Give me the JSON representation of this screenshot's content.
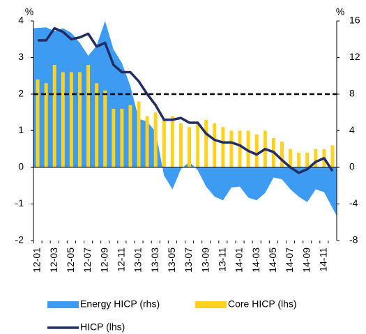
{
  "chart_data": {
    "type": "combo",
    "categories": [
      "12-01",
      null,
      "12-03",
      null,
      "12-05",
      null,
      "12-07",
      null,
      "12-09",
      null,
      "12-11",
      null,
      "13-01",
      null,
      "13-03",
      null,
      "13-05",
      null,
      "13-07",
      null,
      "13-09",
      null,
      "13-11",
      null,
      "14-01",
      null,
      "14-03",
      null,
      "14-05",
      null,
      "14-07",
      null,
      "14-09",
      null,
      "14-11",
      null
    ],
    "ylabel": "%",
    "y2label": "%",
    "ylim": [
      -2,
      4
    ],
    "yticks": [
      -2,
      -1,
      0,
      1,
      2,
      3,
      4
    ],
    "y2lim": [
      -8,
      16
    ],
    "y2ticks": [
      -8,
      -4,
      0,
      4,
      8,
      12,
      16
    ],
    "hline": 2,
    "series": [
      {
        "name": "Energy HICP (rhs)",
        "kind": "area",
        "axis": "y2",
        "color": "#3d9cf2",
        "values": [
          15.2,
          15.3,
          14.9,
          15.2,
          14.7,
          13.6,
          12.2,
          13.3,
          16.0,
          12.9,
          11.4,
          8.9,
          5.3,
          5.0,
          3.9,
          -0.9,
          -2.4,
          -0.2,
          0.6,
          -0.3,
          -2.1,
          -3.2,
          -3.6,
          -2.2,
          -2.1,
          -3.3,
          -3.6,
          -2.8,
          -1.1,
          -1.3,
          -2.4,
          -3.2,
          -3.8,
          -2.4,
          -2.7,
          -5.3
        ]
      },
      {
        "name": "Core HICP (lhs)",
        "kind": "bar",
        "axis": "y",
        "color": "#ffd21f",
        "values": [
          2.4,
          2.3,
          2.8,
          2.6,
          2.6,
          2.6,
          2.8,
          2.3,
          2.1,
          1.6,
          1.6,
          1.7,
          1.8,
          1.4,
          1.5,
          1.3,
          1.4,
          1.2,
          1.1,
          1.2,
          1.3,
          1.2,
          1.1,
          1.0,
          1.0,
          1.0,
          0.9,
          1.0,
          0.8,
          0.7,
          0.5,
          0.4,
          0.4,
          0.5,
          0.5,
          0.6
        ]
      },
      {
        "name": "HICP (lhs)",
        "kind": "line",
        "axis": "y",
        "color": "#232c63",
        "values": [
          3.47,
          3.47,
          3.8,
          3.7,
          3.5,
          3.55,
          3.65,
          3.3,
          3.4,
          2.8,
          2.6,
          2.6,
          2.35,
          2.0,
          1.7,
          1.3,
          1.3,
          1.35,
          1.22,
          1.22,
          0.92,
          0.75,
          0.68,
          0.68,
          0.6,
          0.45,
          0.35,
          0.5,
          0.42,
          0.2,
          0.0,
          -0.15,
          -0.05,
          0.15,
          0.25,
          -0.1
        ]
      }
    ]
  }
}
